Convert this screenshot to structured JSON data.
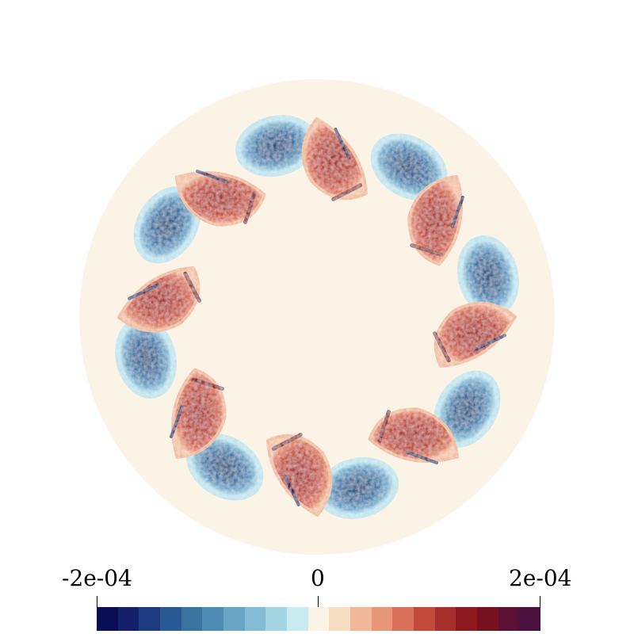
{
  "colorbar": {
    "min_label": "-2e-04",
    "mid_label": "0",
    "max_label": "2e-04",
    "colors": [
      "#0a0f55",
      "#13216b",
      "#1c3a7f",
      "#2a5a93",
      "#3b739f",
      "#4f8cb3",
      "#69a6c6",
      "#84bed6",
      "#a3d5e3",
      "#c7ebef",
      "#fbf4e6",
      "#f6dcc0",
      "#f0b898",
      "#e8967a",
      "#d9705a",
      "#c24a3c",
      "#a82f2c",
      "#8e1a20",
      "#761220",
      "#5d1036",
      "#4a1040"
    ]
  },
  "field": {
    "background": "#fbf3e6",
    "disk_color": "#fbf3e6",
    "vortex_count": 8,
    "blue_core": "#2e6293",
    "blue_mid": "#5c9ac1",
    "blue_edge": "#a3d5e3",
    "red_core": "#b43a30",
    "red_mid": "#d7684d",
    "red_edge": "#f0b898",
    "dark_red": "#761220",
    "dark_blue": "#13216b"
  }
}
